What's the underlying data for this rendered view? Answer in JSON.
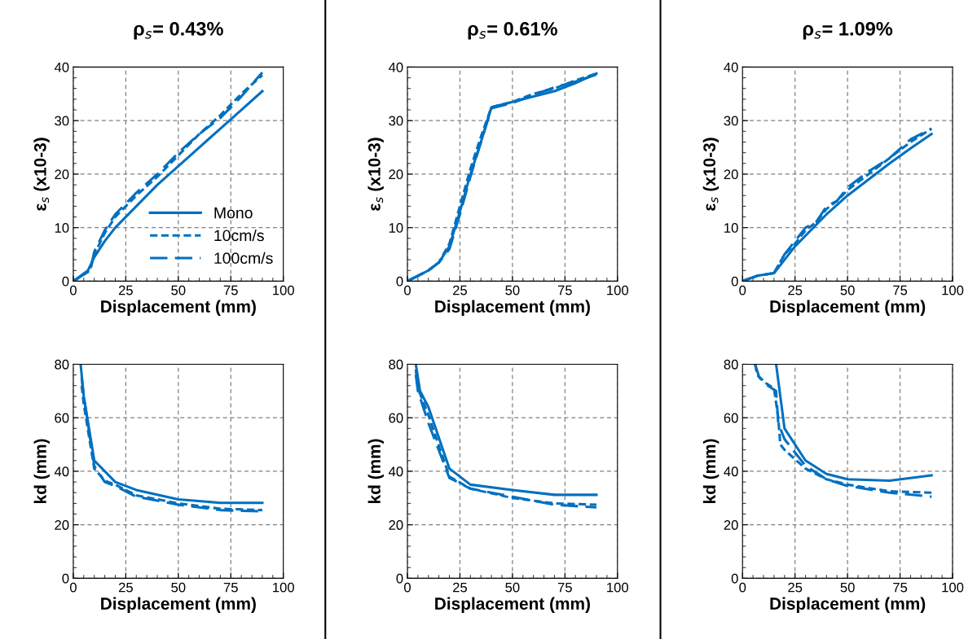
{
  "chart_data": [
    {
      "type": "line",
      "title": "ρ$_{s}$= 0.43%",
      "xlabel": "Displacement (mm)",
      "ylabel": "ε$_{s}$ (x10-3)",
      "xlim": [
        0,
        100
      ],
      "xticks": [
        0,
        25,
        50,
        75,
        100
      ],
      "ylim": [
        0,
        40
      ],
      "yticks": [
        0,
        10,
        20,
        30,
        40
      ],
      "grid": true,
      "legend": "bottom right",
      "series": [
        {
          "name": "Mono",
          "color": "#0070c0",
          "line_style": "solid",
          "x": [
            0,
            7,
            10,
            15,
            20,
            30,
            40,
            50,
            60,
            70,
            80,
            90
          ],
          "values": [
            0,
            2,
            4.5,
            7.5,
            10,
            14,
            18,
            21.5,
            25,
            28.5,
            32,
            35.5
          ]
        },
        {
          "name": "10cm/s",
          "color": "#0070c0",
          "line_style": "dotted",
          "x": [
            0,
            8,
            10,
            15,
            20,
            25,
            30,
            40,
            50,
            60,
            70,
            80,
            90
          ],
          "values": [
            0,
            2,
            5,
            9,
            12,
            14,
            16,
            19.5,
            23.5,
            27.5,
            31,
            35,
            38.5
          ]
        },
        {
          "name": "100cm/s",
          "color": "#0070c0",
          "line_style": "dashed",
          "x": [
            0,
            8,
            10,
            15,
            20,
            25,
            30,
            40,
            50,
            60,
            70,
            80,
            90
          ],
          "values": [
            0,
            2,
            5.5,
            9.5,
            12.5,
            14.5,
            16.5,
            20,
            24,
            27.5,
            30.5,
            34.5,
            39
          ]
        }
      ]
    },
    {
      "type": "line",
      "title": "ρ$_{s}$= 0.61%",
      "xlabel": "Displacement (mm)",
      "ylabel": "ε$_{s}$ (x10-3)",
      "xlim": [
        0,
        100
      ],
      "xticks": [
        0,
        25,
        50,
        75,
        100
      ],
      "ylim": [
        0,
        40
      ],
      "yticks": [
        0,
        10,
        20,
        30,
        40
      ],
      "grid": true,
      "series": [
        {
          "color": "#0070c0",
          "line_style": "solid",
          "x": [
            0,
            5,
            10,
            15,
            20,
            25,
            30,
            35,
            40,
            50,
            60,
            70,
            80,
            90
          ],
          "values": [
            0,
            1,
            2,
            3.5,
            6.5,
            13,
            20,
            26,
            32.5,
            33.5,
            34.5,
            35.5,
            37,
            38.8
          ]
        },
        {
          "color": "#0070c0",
          "line_style": "dotted",
          "x": [
            0,
            5,
            10,
            15,
            20,
            25,
            30,
            35,
            40,
            50,
            60,
            70,
            80,
            90
          ],
          "values": [
            0,
            1,
            2,
            3.5,
            7,
            14,
            21,
            27,
            32.5,
            33.5,
            35,
            36,
            37.5,
            38.8
          ]
        },
        {
          "color": "#0070c0",
          "line_style": "dashed",
          "x": [
            0,
            5,
            10,
            15,
            20,
            25,
            30,
            35,
            40,
            50,
            60,
            70,
            80,
            90
          ],
          "values": [
            0,
            1,
            2,
            3.5,
            6,
            12.5,
            19.5,
            26,
            32.3,
            33.3,
            34.8,
            36.2,
            37.3,
            38.6
          ]
        }
      ]
    },
    {
      "type": "line",
      "title": "ρ$_{s}$= 1.09%",
      "xlabel": "Displacement (mm)",
      "ylabel": "ε$_{s}$ (x10-3)",
      "xlim": [
        0,
        100
      ],
      "xticks": [
        0,
        25,
        50,
        75,
        100
      ],
      "ylim": [
        0,
        40
      ],
      "yticks": [
        0,
        10,
        20,
        30,
        40
      ],
      "grid": true,
      "series": [
        {
          "color": "#0070c0",
          "line_style": "solid",
          "x": [
            0,
            7,
            15,
            20,
            25,
            30,
            40,
            50,
            60,
            70,
            80,
            90
          ],
          "values": [
            0,
            1,
            1.5,
            4,
            6.5,
            8.5,
            12.5,
            16,
            19,
            22,
            24.8,
            27.5
          ]
        },
        {
          "color": "#0070c0",
          "line_style": "dotted",
          "x": [
            0,
            7,
            15,
            20,
            25,
            30,
            35,
            40,
            45,
            50,
            60,
            70,
            80,
            90
          ],
          "values": [
            0,
            1,
            1.5,
            5,
            7,
            9.5,
            11,
            13.5,
            15,
            17,
            20,
            23,
            26,
            28.5
          ]
        },
        {
          "color": "#0070c0",
          "line_style": "dashed",
          "x": [
            0,
            7,
            15,
            20,
            25,
            30,
            35,
            40,
            45,
            50,
            60,
            70,
            80,
            90
          ],
          "values": [
            0,
            1,
            1.5,
            5,
            7.5,
            10,
            11,
            14,
            15,
            17.5,
            20.5,
            23,
            26.5,
            28.5
          ]
        }
      ]
    },
    {
      "type": "line",
      "xlabel": "Displacement (mm)",
      "ylabel": "kd (mm)",
      "xlim": [
        0,
        100
      ],
      "xticks": [
        0,
        25,
        50,
        75,
        100
      ],
      "ylim": [
        0,
        80
      ],
      "yticks": [
        0,
        20,
        40,
        60,
        80
      ],
      "grid": true,
      "series": [
        {
          "color": "#0070c0",
          "line_style": "solid",
          "x": [
            3.5,
            5,
            10,
            20,
            30,
            50,
            70,
            90
          ],
          "values": [
            80,
            68,
            44,
            36,
            33,
            29.5,
            28.2,
            28.2
          ]
        },
        {
          "color": "#0070c0",
          "line_style": "dotted",
          "x": [
            4,
            5,
            10,
            15,
            20,
            30,
            50,
            70,
            90
          ],
          "values": [
            72,
            65,
            41,
            36.5,
            35,
            31,
            28,
            26,
            25.5
          ]
        },
        {
          "color": "#0070c0",
          "line_style": "dashed",
          "x": [
            4,
            5,
            10,
            15,
            20,
            30,
            50,
            70,
            90
          ],
          "values": [
            75,
            68,
            42,
            36,
            34.5,
            30.5,
            27.5,
            25.5,
            25
          ]
        }
      ]
    },
    {
      "type": "line",
      "xlabel": "Displacement (mm)",
      "ylabel": "kd (mm)",
      "xlim": [
        0,
        100
      ],
      "xticks": [
        0,
        25,
        50,
        75,
        100
      ],
      "ylim": [
        0,
        80
      ],
      "yticks": [
        0,
        20,
        40,
        60,
        80
      ],
      "grid": true,
      "series": [
        {
          "color": "#0070c0",
          "line_style": "solid",
          "x": [
            4,
            6,
            10,
            20,
            30,
            50,
            70,
            90
          ],
          "values": [
            80,
            70,
            64,
            41,
            35,
            33,
            31.2,
            31.2
          ]
        },
        {
          "color": "#0070c0",
          "line_style": "dotted",
          "x": [
            4,
            5,
            10,
            20,
            30,
            50,
            70,
            90
          ],
          "values": [
            78,
            71,
            61,
            38,
            33.5,
            30,
            28,
            27.5
          ]
        },
        {
          "color": "#0070c0",
          "line_style": "dashed",
          "x": [
            4,
            5,
            10,
            20,
            30,
            50,
            70,
            90
          ],
          "values": [
            76,
            70,
            58,
            37.5,
            33.5,
            30.5,
            27.5,
            26.5
          ]
        }
      ]
    },
    {
      "type": "line",
      "xlabel": "Displacement (mm)",
      "ylabel": "kd (mm)",
      "xlim": [
        0,
        100
      ],
      "xticks": [
        0,
        25,
        50,
        75,
        100
      ],
      "ylim": [
        0,
        80
      ],
      "yticks": [
        0,
        20,
        40,
        60,
        80
      ],
      "grid": true,
      "series": [
        {
          "color": "#0070c0",
          "line_style": "solid",
          "x": [
            16,
            20,
            30,
            40,
            50,
            70,
            90
          ],
          "values": [
            80,
            56,
            44,
            39,
            37,
            36.5,
            38.5
          ]
        },
        {
          "color": "#0070c0",
          "line_style": "dotted",
          "x": [
            6,
            7,
            11,
            15,
            17,
            18,
            20,
            30,
            40,
            50,
            70,
            90
          ],
          "values": [
            80,
            76,
            73,
            71,
            60,
            50,
            48,
            41,
            37,
            35,
            32.5,
            32
          ]
        },
        {
          "color": "#0070c0",
          "line_style": "dashed",
          "x": [
            6,
            8,
            12,
            16,
            17,
            20,
            30,
            40,
            50,
            70,
            90
          ],
          "values": [
            80,
            75,
            72,
            70,
            58,
            52,
            42,
            37,
            34.5,
            32,
            30.5
          ]
        }
      ]
    }
  ]
}
